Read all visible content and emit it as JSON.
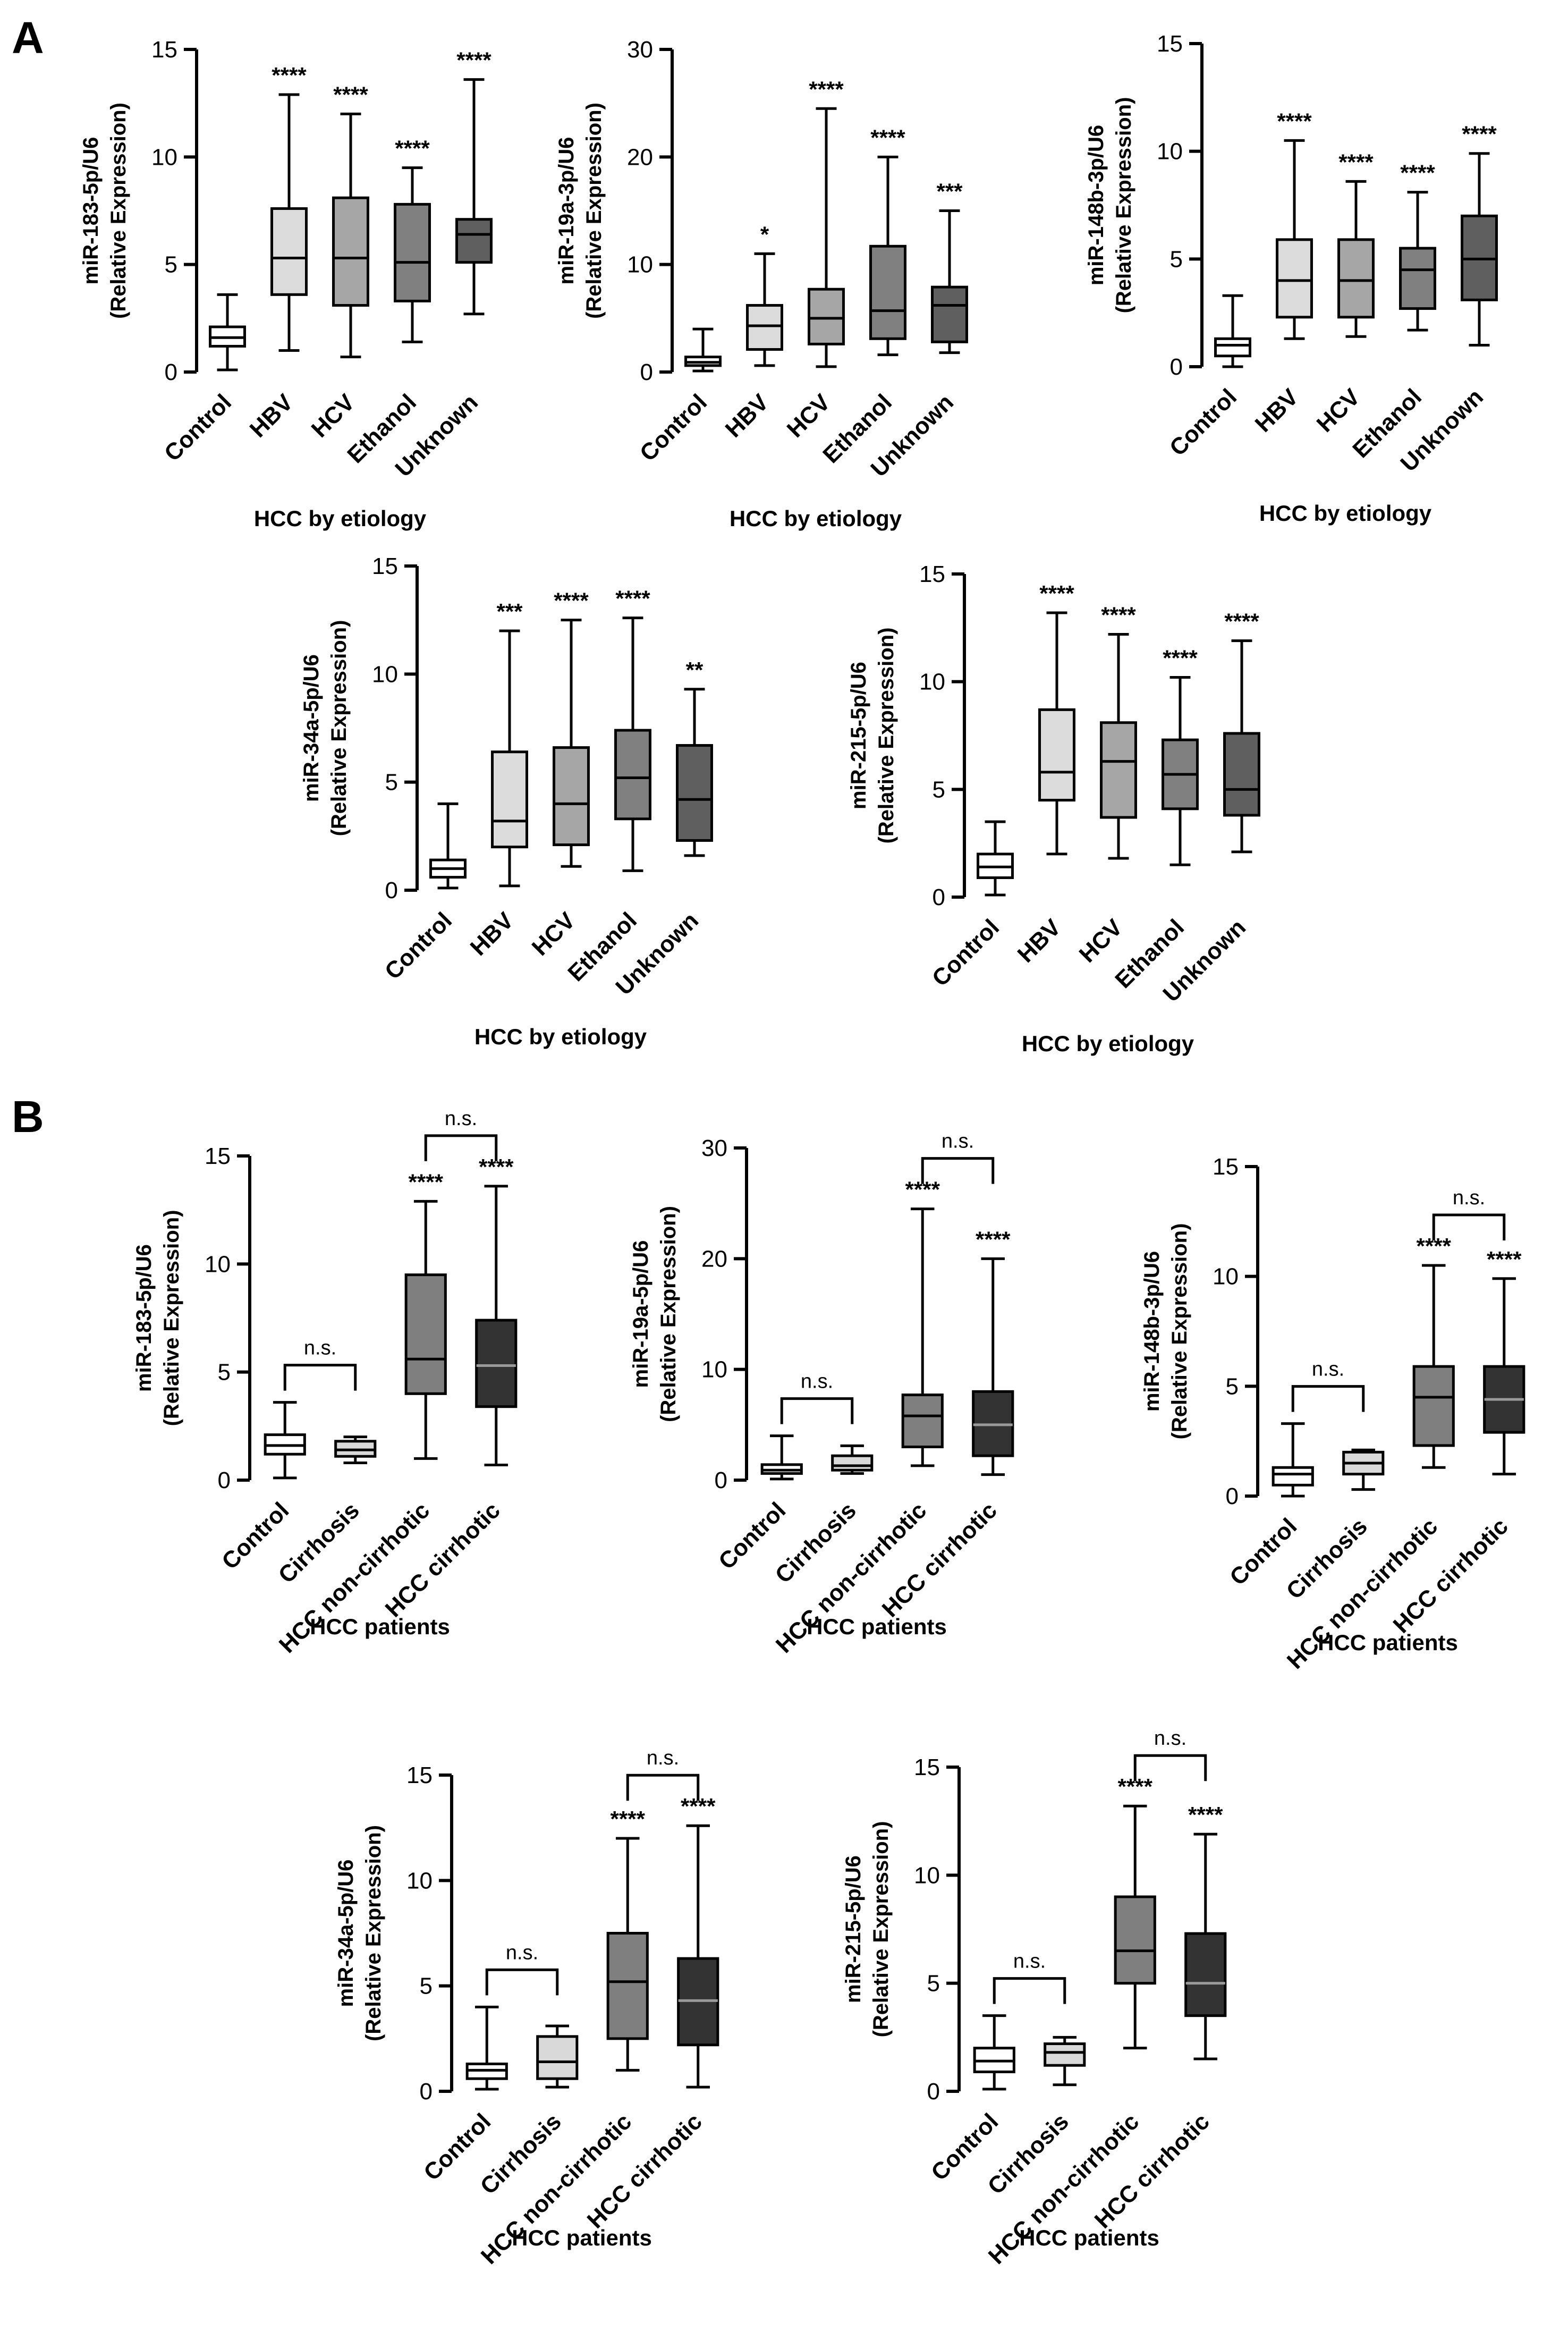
{
  "figure": {
    "panel_labels": [
      "A",
      "B"
    ]
  },
  "colors": {
    "Control": "#ffffff",
    "HBV": "#dcdcdc",
    "HCV": "#a6a6a6",
    "Ethanol": "#808080",
    "Unknown": "#5f5f5f",
    "Cirrhosis": "#d9d9d9",
    "HCC non-cirrhotic": "#7f7f7f",
    "HCC cirrhotic": "#333333",
    "stroke": "#000000"
  },
  "chart_data": [
    {
      "id": "A1",
      "panel": "A",
      "type": "boxplot",
      "ylabel": "miR-183-5p/U6",
      "ylabel2": "(Relative Expression)",
      "xlabel": "HCC by etiology",
      "ylim": [
        0,
        15
      ],
      "yticks": [
        0,
        5,
        10,
        15
      ],
      "categories": [
        "Control",
        "HBV",
        "HCV",
        "Ethanol",
        "Unknown"
      ],
      "boxes": [
        {
          "min": 0.1,
          "q1": 1.2,
          "median": 1.6,
          "q3": 2.1,
          "max": 3.6,
          "sig": ""
        },
        {
          "min": 1.0,
          "q1": 3.6,
          "median": 5.3,
          "q3": 7.6,
          "max": 12.9,
          "sig": "****"
        },
        {
          "min": 0.7,
          "q1": 3.1,
          "median": 5.3,
          "q3": 8.1,
          "max": 12.0,
          "sig": "****"
        },
        {
          "min": 1.4,
          "q1": 3.3,
          "median": 5.1,
          "q3": 7.8,
          "max": 9.5,
          "sig": "****"
        },
        {
          "min": 2.7,
          "q1": 5.1,
          "median": 6.4,
          "q3": 7.1,
          "max": 13.6,
          "sig": "****"
        }
      ]
    },
    {
      "id": "A2",
      "panel": "A",
      "type": "boxplot",
      "ylabel": "miR-19a-3p/U6",
      "ylabel2": "(Relative Expression)",
      "xlabel": "HCC by etiology",
      "ylim": [
        0,
        30
      ],
      "yticks": [
        0,
        10,
        20,
        30
      ],
      "categories": [
        "Control",
        "HBV",
        "HCV",
        "Ethanol",
        "Unknown"
      ],
      "boxes": [
        {
          "min": 0.1,
          "q1": 0.6,
          "median": 0.9,
          "q3": 1.4,
          "max": 4.0,
          "sig": ""
        },
        {
          "min": 0.6,
          "q1": 2.1,
          "median": 4.3,
          "q3": 6.2,
          "max": 11.0,
          "sig": "*"
        },
        {
          "min": 0.5,
          "q1": 2.6,
          "median": 5.0,
          "q3": 7.7,
          "max": 24.5,
          "sig": "****"
        },
        {
          "min": 1.6,
          "q1": 3.1,
          "median": 5.7,
          "q3": 11.7,
          "max": 20.0,
          "sig": "****"
        },
        {
          "min": 1.8,
          "q1": 2.8,
          "median": 6.2,
          "q3": 7.9,
          "max": 15.0,
          "sig": "***"
        }
      ]
    },
    {
      "id": "A3",
      "panel": "A",
      "type": "boxplot",
      "ylabel": "miR-148b-3p/U6",
      "ylabel2": "(Relative Expression)",
      "xlabel": "HCC by etiology",
      "ylim": [
        0,
        15
      ],
      "yticks": [
        0,
        5,
        10,
        15
      ],
      "categories": [
        "Control",
        "HBV",
        "HCV",
        "Ethanol",
        "Unknown"
      ],
      "boxes": [
        {
          "min": 0.0,
          "q1": 0.5,
          "median": 1.0,
          "q3": 1.3,
          "max": 3.3,
          "sig": ""
        },
        {
          "min": 1.3,
          "q1": 2.3,
          "median": 4.0,
          "q3": 5.9,
          "max": 10.5,
          "sig": "****"
        },
        {
          "min": 1.4,
          "q1": 2.3,
          "median": 4.0,
          "q3": 5.9,
          "max": 8.6,
          "sig": "****"
        },
        {
          "min": 1.7,
          "q1": 2.7,
          "median": 4.5,
          "q3": 5.5,
          "max": 8.1,
          "sig": "****"
        },
        {
          "min": 1.0,
          "q1": 3.1,
          "median": 5.0,
          "q3": 7.0,
          "max": 9.9,
          "sig": "****"
        }
      ]
    },
    {
      "id": "A4",
      "panel": "A",
      "type": "boxplot",
      "ylabel": "miR-34a-5p/U6",
      "ylabel2": "(Relative Expression)",
      "xlabel": "HCC by etiology",
      "ylim": [
        0,
        15
      ],
      "yticks": [
        0,
        5,
        10,
        15
      ],
      "categories": [
        "Control",
        "HBV",
        "HCV",
        "Ethanol",
        "Unknown"
      ],
      "boxes": [
        {
          "min": 0.1,
          "q1": 0.6,
          "median": 1.0,
          "q3": 1.4,
          "max": 4.0,
          "sig": ""
        },
        {
          "min": 0.2,
          "q1": 2.0,
          "median": 3.2,
          "q3": 6.4,
          "max": 12.0,
          "sig": "***"
        },
        {
          "min": 1.1,
          "q1": 2.1,
          "median": 4.0,
          "q3": 6.6,
          "max": 12.5,
          "sig": "****"
        },
        {
          "min": 0.9,
          "q1": 3.3,
          "median": 5.2,
          "q3": 7.4,
          "max": 12.6,
          "sig": "****"
        },
        {
          "min": 1.6,
          "q1": 2.3,
          "median": 4.2,
          "q3": 6.7,
          "max": 9.3,
          "sig": "**"
        }
      ]
    },
    {
      "id": "A5",
      "panel": "A",
      "type": "boxplot",
      "ylabel": "miR-215-5p/U6",
      "ylabel2": "(Relative Expression)",
      "xlabel": "HCC by etiology",
      "ylim": [
        0,
        15
      ],
      "yticks": [
        0,
        5,
        10,
        15
      ],
      "categories": [
        "Control",
        "HBV",
        "HCV",
        "Ethanol",
        "Unknown"
      ],
      "boxes": [
        {
          "min": 0.1,
          "q1": 0.9,
          "median": 1.4,
          "q3": 2.0,
          "max": 3.5,
          "sig": ""
        },
        {
          "min": 2.0,
          "q1": 4.5,
          "median": 5.8,
          "q3": 8.7,
          "max": 13.2,
          "sig": "****"
        },
        {
          "min": 1.8,
          "q1": 3.7,
          "median": 6.3,
          "q3": 8.1,
          "max": 12.2,
          "sig": "****"
        },
        {
          "min": 1.5,
          "q1": 4.1,
          "median": 5.7,
          "q3": 7.3,
          "max": 10.2,
          "sig": "****"
        },
        {
          "min": 2.1,
          "q1": 3.8,
          "median": 5.0,
          "q3": 7.6,
          "max": 11.9,
          "sig": "****"
        }
      ]
    },
    {
      "id": "B1",
      "panel": "B",
      "type": "boxplot",
      "ylabel": "miR-183-5p/U6",
      "ylabel2": "(Relative Expression)",
      "xlabel": "HCC patients",
      "ylim": [
        0,
        15
      ],
      "yticks": [
        0,
        5,
        10,
        15
      ],
      "categories": [
        "Control",
        "Cirrhosis",
        "HCC non-cirrhotic",
        "HCC cirrhotic"
      ],
      "boxes": [
        {
          "min": 0.1,
          "q1": 1.2,
          "median": 1.6,
          "q3": 2.1,
          "max": 3.6,
          "sig": ""
        },
        {
          "min": 0.8,
          "q1": 1.1,
          "median": 1.4,
          "q3": 1.8,
          "max": 2.0,
          "sig": ""
        },
        {
          "min": 1.0,
          "q1": 4.0,
          "median": 5.6,
          "q3": 9.5,
          "max": 12.9,
          "sig": "****"
        },
        {
          "min": 0.7,
          "q1": 3.4,
          "median": 5.3,
          "q3": 7.4,
          "max": 13.6,
          "sig": "****"
        }
      ],
      "brackets": [
        {
          "from": 0,
          "to": 1,
          "label": "n.s."
        },
        {
          "from": 2,
          "to": 3,
          "label": "n.s."
        }
      ]
    },
    {
      "id": "B2",
      "panel": "B",
      "type": "boxplot",
      "ylabel": "miR-19a-5p/U6",
      "ylabel2": "(Relative Expression)",
      "xlabel": "HCC patients",
      "ylim": [
        0,
        30
      ],
      "yticks": [
        0,
        10,
        20,
        30
      ],
      "categories": [
        "Control",
        "Cirrhosis",
        "HCC non-cirrhotic",
        "HCC cirrhotic"
      ],
      "boxes": [
        {
          "min": 0.1,
          "q1": 0.6,
          "median": 0.9,
          "q3": 1.4,
          "max": 4.0,
          "sig": ""
        },
        {
          "min": 0.6,
          "q1": 0.9,
          "median": 1.3,
          "q3": 2.2,
          "max": 3.1,
          "sig": ""
        },
        {
          "min": 1.3,
          "q1": 3.0,
          "median": 5.8,
          "q3": 7.7,
          "max": 24.5,
          "sig": "****"
        },
        {
          "min": 0.5,
          "q1": 2.2,
          "median": 5.0,
          "q3": 8.0,
          "max": 20.0,
          "sig": "****"
        }
      ],
      "brackets": [
        {
          "from": 0,
          "to": 1,
          "label": "n.s."
        },
        {
          "from": 2,
          "to": 3,
          "label": "n.s."
        }
      ]
    },
    {
      "id": "B3",
      "panel": "B",
      "type": "boxplot",
      "ylabel": "miR-148b-3p/U6",
      "ylabel2": "(Relative Expression)",
      "xlabel": "HCC patients",
      "ylim": [
        0,
        15
      ],
      "yticks": [
        0,
        5,
        10,
        15
      ],
      "categories": [
        "Control",
        "Cirrhosis",
        "HCC non-cirrhotic",
        "HCC cirrhotic"
      ],
      "boxes": [
        {
          "min": 0.0,
          "q1": 0.5,
          "median": 1.0,
          "q3": 1.3,
          "max": 3.3,
          "sig": ""
        },
        {
          "min": 0.3,
          "q1": 1.0,
          "median": 1.5,
          "q3": 2.0,
          "max": 2.1,
          "sig": ""
        },
        {
          "min": 1.3,
          "q1": 2.3,
          "median": 4.5,
          "q3": 5.9,
          "max": 10.5,
          "sig": "****"
        },
        {
          "min": 1.0,
          "q1": 2.9,
          "median": 4.4,
          "q3": 5.9,
          "max": 9.9,
          "sig": "****"
        }
      ],
      "brackets": [
        {
          "from": 0,
          "to": 1,
          "label": "n.s."
        },
        {
          "from": 2,
          "to": 3,
          "label": "n.s."
        }
      ]
    },
    {
      "id": "B4",
      "panel": "B",
      "type": "boxplot",
      "ylabel": "miR-34a-5p/U6",
      "ylabel2": "(Relative Expression)",
      "xlabel": "HCC patients",
      "ylim": [
        0,
        15
      ],
      "yticks": [
        0,
        5,
        10,
        15
      ],
      "categories": [
        "Control",
        "Cirrhosis",
        "HCC non-cirrhotic",
        "HCC cirrhotic"
      ],
      "boxes": [
        {
          "min": 0.1,
          "q1": 0.6,
          "median": 1.0,
          "q3": 1.3,
          "max": 4.0,
          "sig": ""
        },
        {
          "min": 0.2,
          "q1": 0.6,
          "median": 1.4,
          "q3": 2.6,
          "max": 3.1,
          "sig": ""
        },
        {
          "min": 1.0,
          "q1": 2.5,
          "median": 5.2,
          "q3": 7.5,
          "max": 12.0,
          "sig": "****"
        },
        {
          "min": 0.2,
          "q1": 2.2,
          "median": 4.3,
          "q3": 6.3,
          "max": 12.6,
          "sig": "****"
        }
      ],
      "brackets": [
        {
          "from": 0,
          "to": 1,
          "label": "n.s."
        },
        {
          "from": 2,
          "to": 3,
          "label": "n.s."
        }
      ]
    },
    {
      "id": "B5",
      "panel": "B",
      "type": "boxplot",
      "ylabel": "miR-215-5p/U6",
      "ylabel2": "(Relative Expression)",
      "xlabel": "HCC patients",
      "ylim": [
        0,
        15
      ],
      "yticks": [
        0,
        5,
        10,
        15
      ],
      "categories": [
        "Control",
        "Cirrhosis",
        "HCC non-cirrhotic",
        "HCC cirrhotic"
      ],
      "boxes": [
        {
          "min": 0.1,
          "q1": 0.9,
          "median": 1.4,
          "q3": 2.0,
          "max": 3.5,
          "sig": ""
        },
        {
          "min": 0.3,
          "q1": 1.2,
          "median": 1.8,
          "q3": 2.2,
          "max": 2.5,
          "sig": ""
        },
        {
          "min": 2.0,
          "q1": 5.0,
          "median": 6.5,
          "q3": 9.0,
          "max": 13.2,
          "sig": "****"
        },
        {
          "min": 1.5,
          "q1": 3.5,
          "median": 5.0,
          "q3": 7.3,
          "max": 11.9,
          "sig": "****"
        }
      ],
      "brackets": [
        {
          "from": 0,
          "to": 1,
          "label": "n.s."
        },
        {
          "from": 2,
          "to": 3,
          "label": "n.s."
        }
      ]
    }
  ]
}
